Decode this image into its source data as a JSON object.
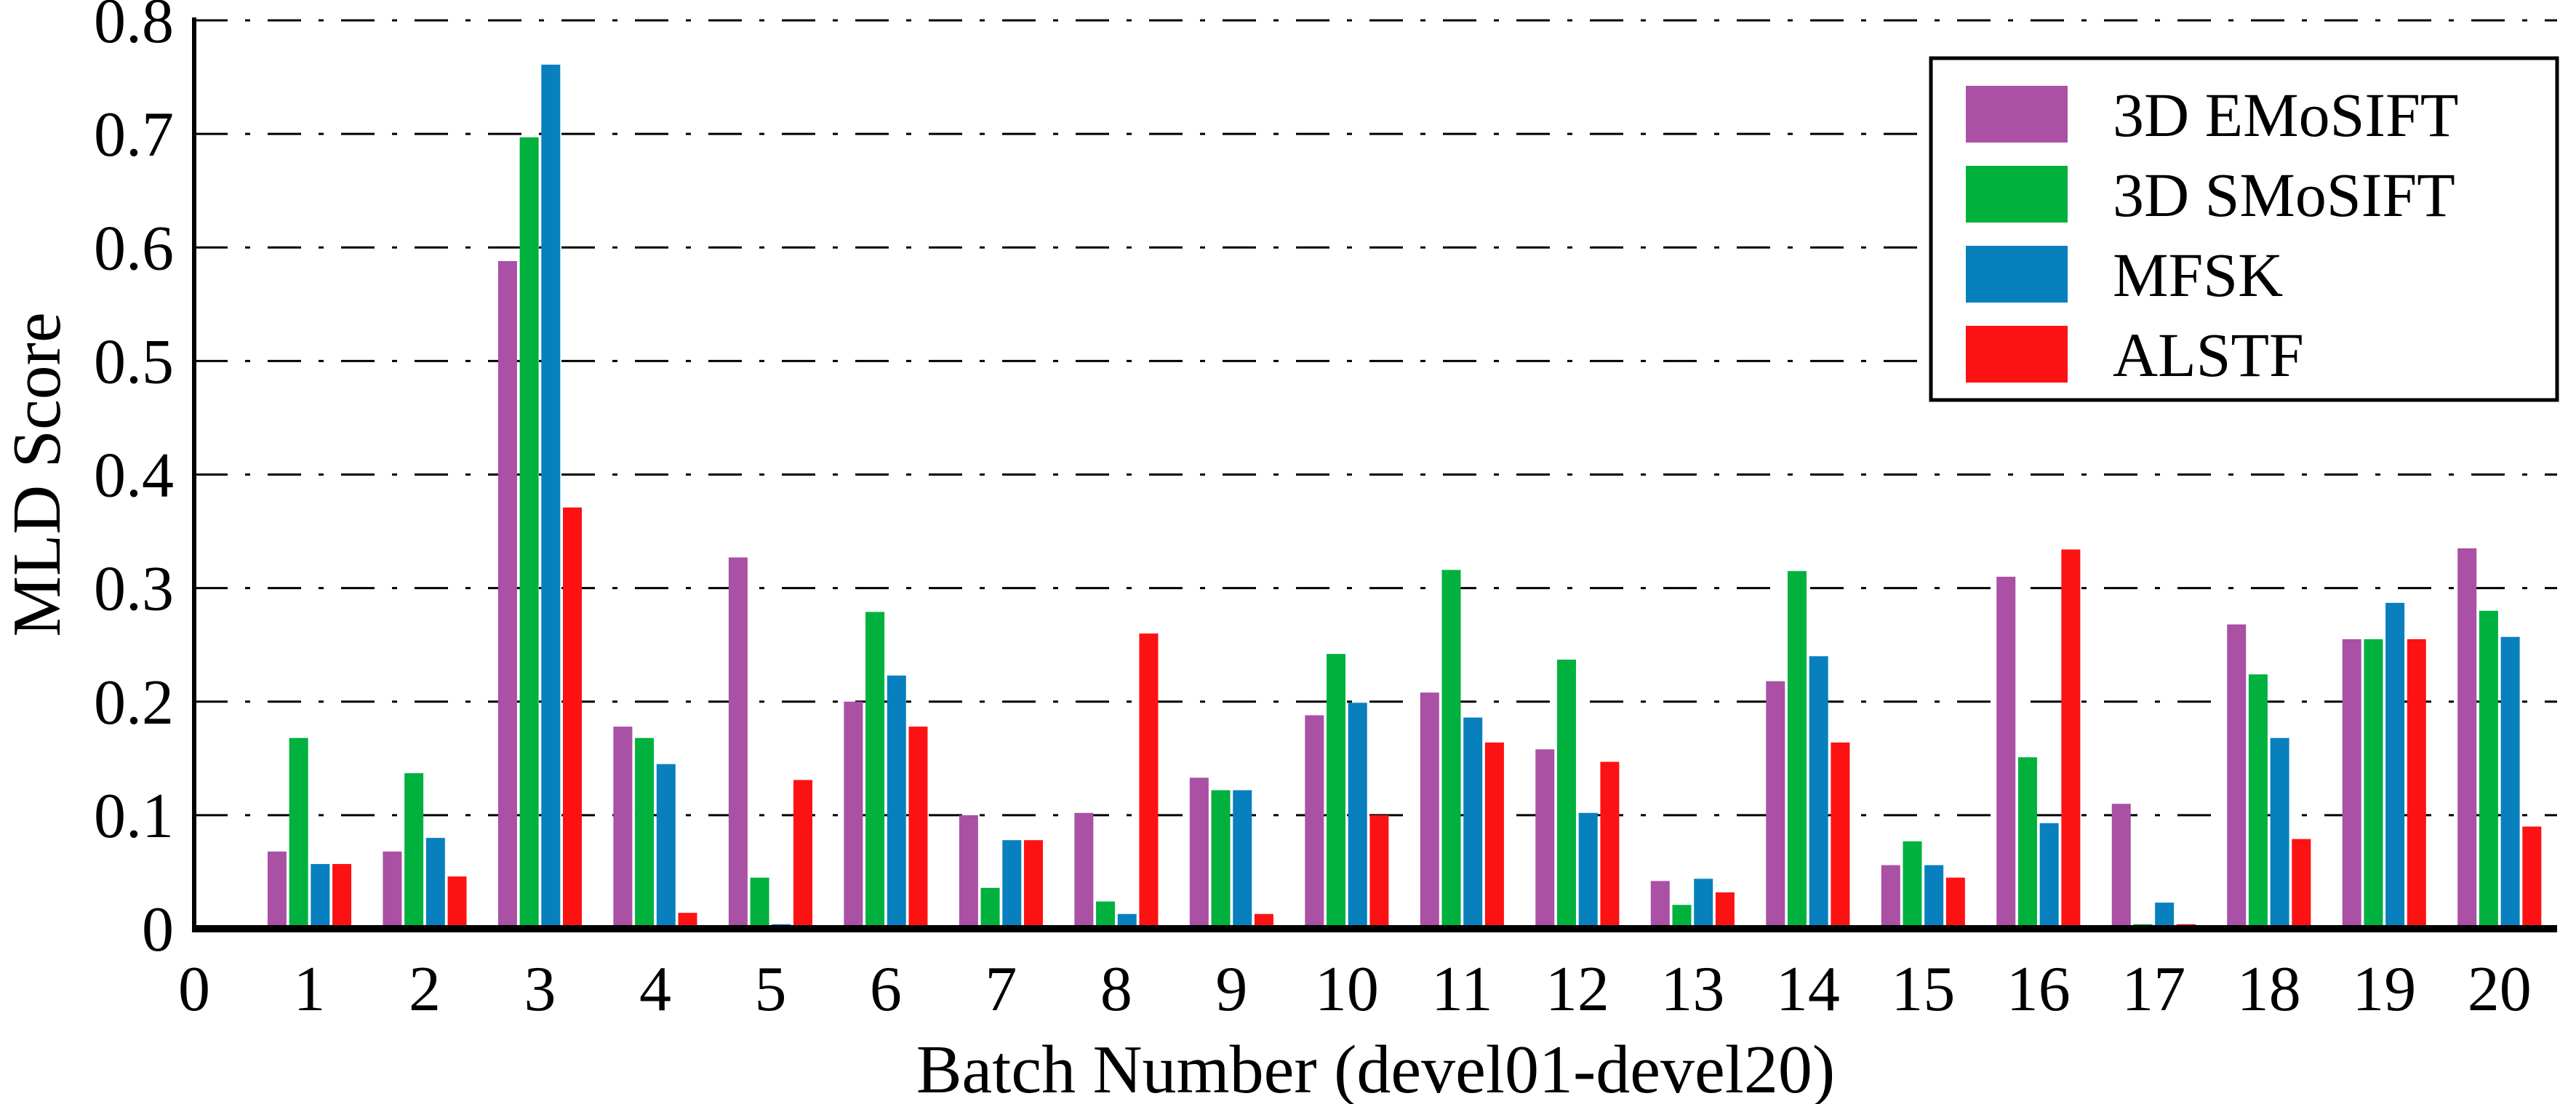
{
  "chart_data": {
    "type": "bar",
    "title": "",
    "xlabel": "Batch Number (devel01-devel20)",
    "ylabel": "MLD Score",
    "ylim": [
      0,
      0.8
    ],
    "xlim": [
      0,
      20.5
    ],
    "grid": "horizontal dash-dot",
    "legend_position": "top-right",
    "y_ticks": [
      0,
      0.1,
      0.2,
      0.3,
      0.4,
      0.5,
      0.6,
      0.7,
      0.8
    ],
    "y_tick_labels": [
      "0",
      "0.1",
      "0.2",
      "0.3",
      "0.4",
      "0.5",
      "0.6",
      "0.7",
      "0.8"
    ],
    "x_ticks": [
      0,
      1,
      2,
      3,
      4,
      5,
      6,
      7,
      8,
      9,
      10,
      11,
      12,
      13,
      14,
      15,
      16,
      17,
      18,
      19,
      20
    ],
    "x_tick_labels": [
      "0",
      "1",
      "2",
      "3",
      "4",
      "5",
      "6",
      "7",
      "8",
      "9",
      "10",
      "11",
      "12",
      "13",
      "14",
      "15",
      "16",
      "17",
      "18",
      "19",
      "20"
    ],
    "categories": [
      1,
      2,
      3,
      4,
      5,
      6,
      7,
      8,
      9,
      10,
      11,
      12,
      13,
      14,
      15,
      16,
      17,
      18,
      19,
      20
    ],
    "series": [
      {
        "name": "3D EMoSIFT",
        "color": "#AA50A5",
        "values": [
          0.068,
          0.068,
          0.588,
          0.178,
          0.327,
          0.2,
          0.1,
          0.102,
          0.133,
          0.188,
          0.208,
          0.158,
          0.042,
          0.218,
          0.056,
          0.31,
          0.11,
          0.268,
          0.255,
          0.335
        ]
      },
      {
        "name": "3D SMoSIFT",
        "color": "#00B13E",
        "values": [
          0.168,
          0.137,
          0.697,
          0.168,
          0.045,
          0.279,
          0.036,
          0.024,
          0.122,
          0.242,
          0.316,
          0.237,
          0.021,
          0.315,
          0.077,
          0.151,
          0.004,
          0.224,
          0.255,
          0.28
        ]
      },
      {
        "name": "MFSK",
        "color": "#0880BE",
        "values": [
          0.057,
          0.08,
          0.761,
          0.145,
          0.004,
          0.223,
          0.078,
          0.013,
          0.122,
          0.199,
          0.186,
          0.102,
          0.044,
          0.24,
          0.056,
          0.093,
          0.023,
          0.168,
          0.287,
          0.257
        ]
      },
      {
        "name": "ALSTF",
        "color": "#FD1213",
        "values": [
          0.057,
          0.046,
          0.371,
          0.014,
          0.131,
          0.178,
          0.078,
          0.26,
          0.013,
          0.1,
          0.164,
          0.147,
          0.032,
          0.164,
          0.045,
          0.334,
          0.004,
          0.079,
          0.255,
          0.09
        ]
      }
    ],
    "axis_color": "#000000",
    "background_color": "#ffffff"
  }
}
